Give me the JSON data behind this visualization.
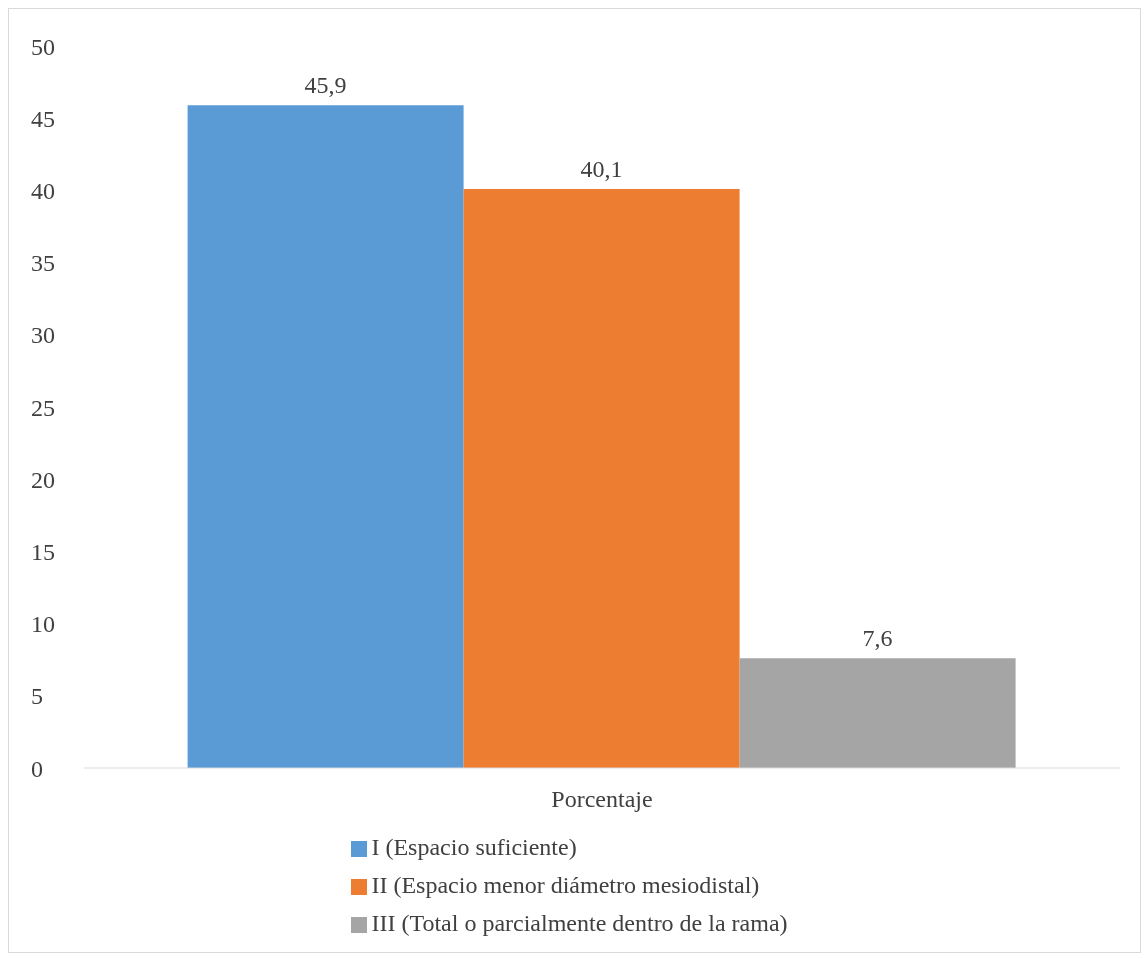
{
  "chart_data": {
    "type": "bar",
    "categories": [
      "Porcentaje"
    ],
    "series": [
      {
        "name": "I (Espacio suficiente)",
        "color": "#5b9bd5",
        "values": [
          45.9
        ],
        "value_labels": [
          "45,9"
        ]
      },
      {
        "name": "II (Espacio menor diámetro mesiodistal)",
        "color": "#ed7d31",
        "values": [
          40.1
        ],
        "value_labels": [
          "40,1"
        ]
      },
      {
        "name": "III (Total o parcialmente dentro de la rama)",
        "color": "#a5a5a5",
        "values": [
          7.6
        ],
        "value_labels": [
          "7,6"
        ]
      }
    ],
    "ylim": [
      0,
      50
    ],
    "yticks": [
      0,
      5,
      10,
      15,
      20,
      25,
      30,
      35,
      40,
      45,
      50
    ],
    "grid": false,
    "legend": "bottom"
  }
}
